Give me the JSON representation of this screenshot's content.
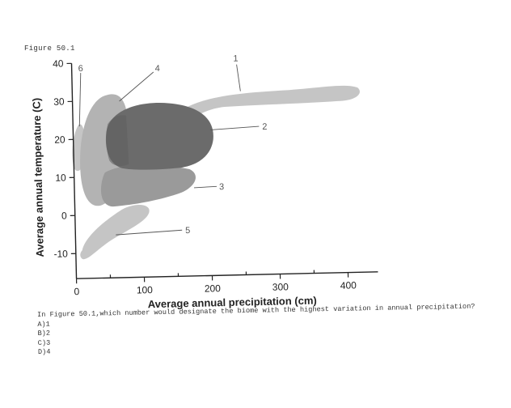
{
  "figure_label": "Figure 50.1",
  "axes": {
    "x_label": "Average annual precipitation (cm)",
    "y_label": "Average annual temperature (C)",
    "x_ticks": [
      "0",
      "100",
      "200",
      "300",
      "400"
    ],
    "y_ticks": [
      "40",
      "30",
      "20",
      "10",
      "0",
      "-10"
    ]
  },
  "callouts": [
    "1",
    "2",
    "3",
    "4",
    "5",
    "6"
  ],
  "question": {
    "stem": "In Figure 50.1,which number would designate the biome with the highest variation in annual precipitation?",
    "choices": [
      "A)1",
      "B)2",
      "C)3",
      "D)4"
    ]
  },
  "colors": {
    "light_gray": "#c5c5c5",
    "mid_gray": "#9a9a9a",
    "dark_gray": "#6b6b6b",
    "axis": "#222222",
    "text": "#333333"
  }
}
